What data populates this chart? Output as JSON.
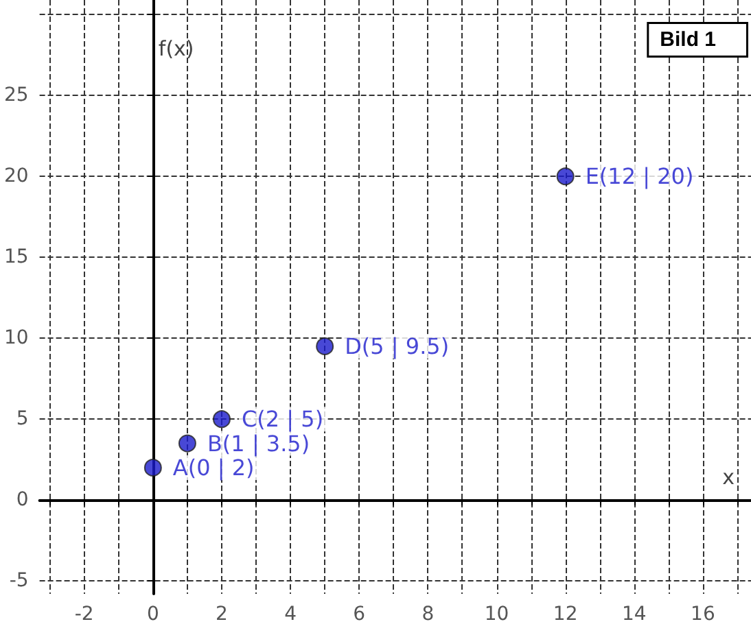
{
  "chart_data": {
    "type": "scatter",
    "xlabel": "x",
    "ylabel": "f(x)",
    "annotations": [
      "Bild 1"
    ],
    "x": [
      0,
      1,
      2,
      5,
      12
    ],
    "series": [
      {
        "color": "#1a1acc",
        "values": [
          2,
          3.5,
          5,
          9.5,
          20
        ],
        "value_labels": [
          "A(0 | 2)",
          "B(1 | 3.5)",
          "C(2 | 5)",
          "D(5 | 9.5)",
          "E(12 | 20)"
        ]
      }
    ],
    "xlim": [
      -3.3,
      17.4
    ],
    "ylim": [
      -5.8,
      30.9
    ],
    "xticks": [
      {
        "value": -3,
        "label": null
      },
      -2,
      {
        "value": -1,
        "label": null
      },
      0,
      {
        "value": 1,
        "label": null
      },
      2,
      {
        "value": 3,
        "label": null
      },
      4,
      {
        "value": 5,
        "label": null
      },
      6,
      {
        "value": 7,
        "label": null
      },
      8,
      {
        "value": 9,
        "label": null
      },
      10,
      {
        "value": 11,
        "label": null
      },
      12,
      {
        "value": 13,
        "label": null
      },
      14,
      {
        "value": 15,
        "label": null
      },
      16,
      {
        "value": 17,
        "label": null
      }
    ],
    "yticks": [
      -5,
      0,
      5,
      10,
      15,
      20,
      25,
      {
        "value": 30,
        "label": null
      }
    ],
    "grid": true,
    "marker": "circle"
  }
}
